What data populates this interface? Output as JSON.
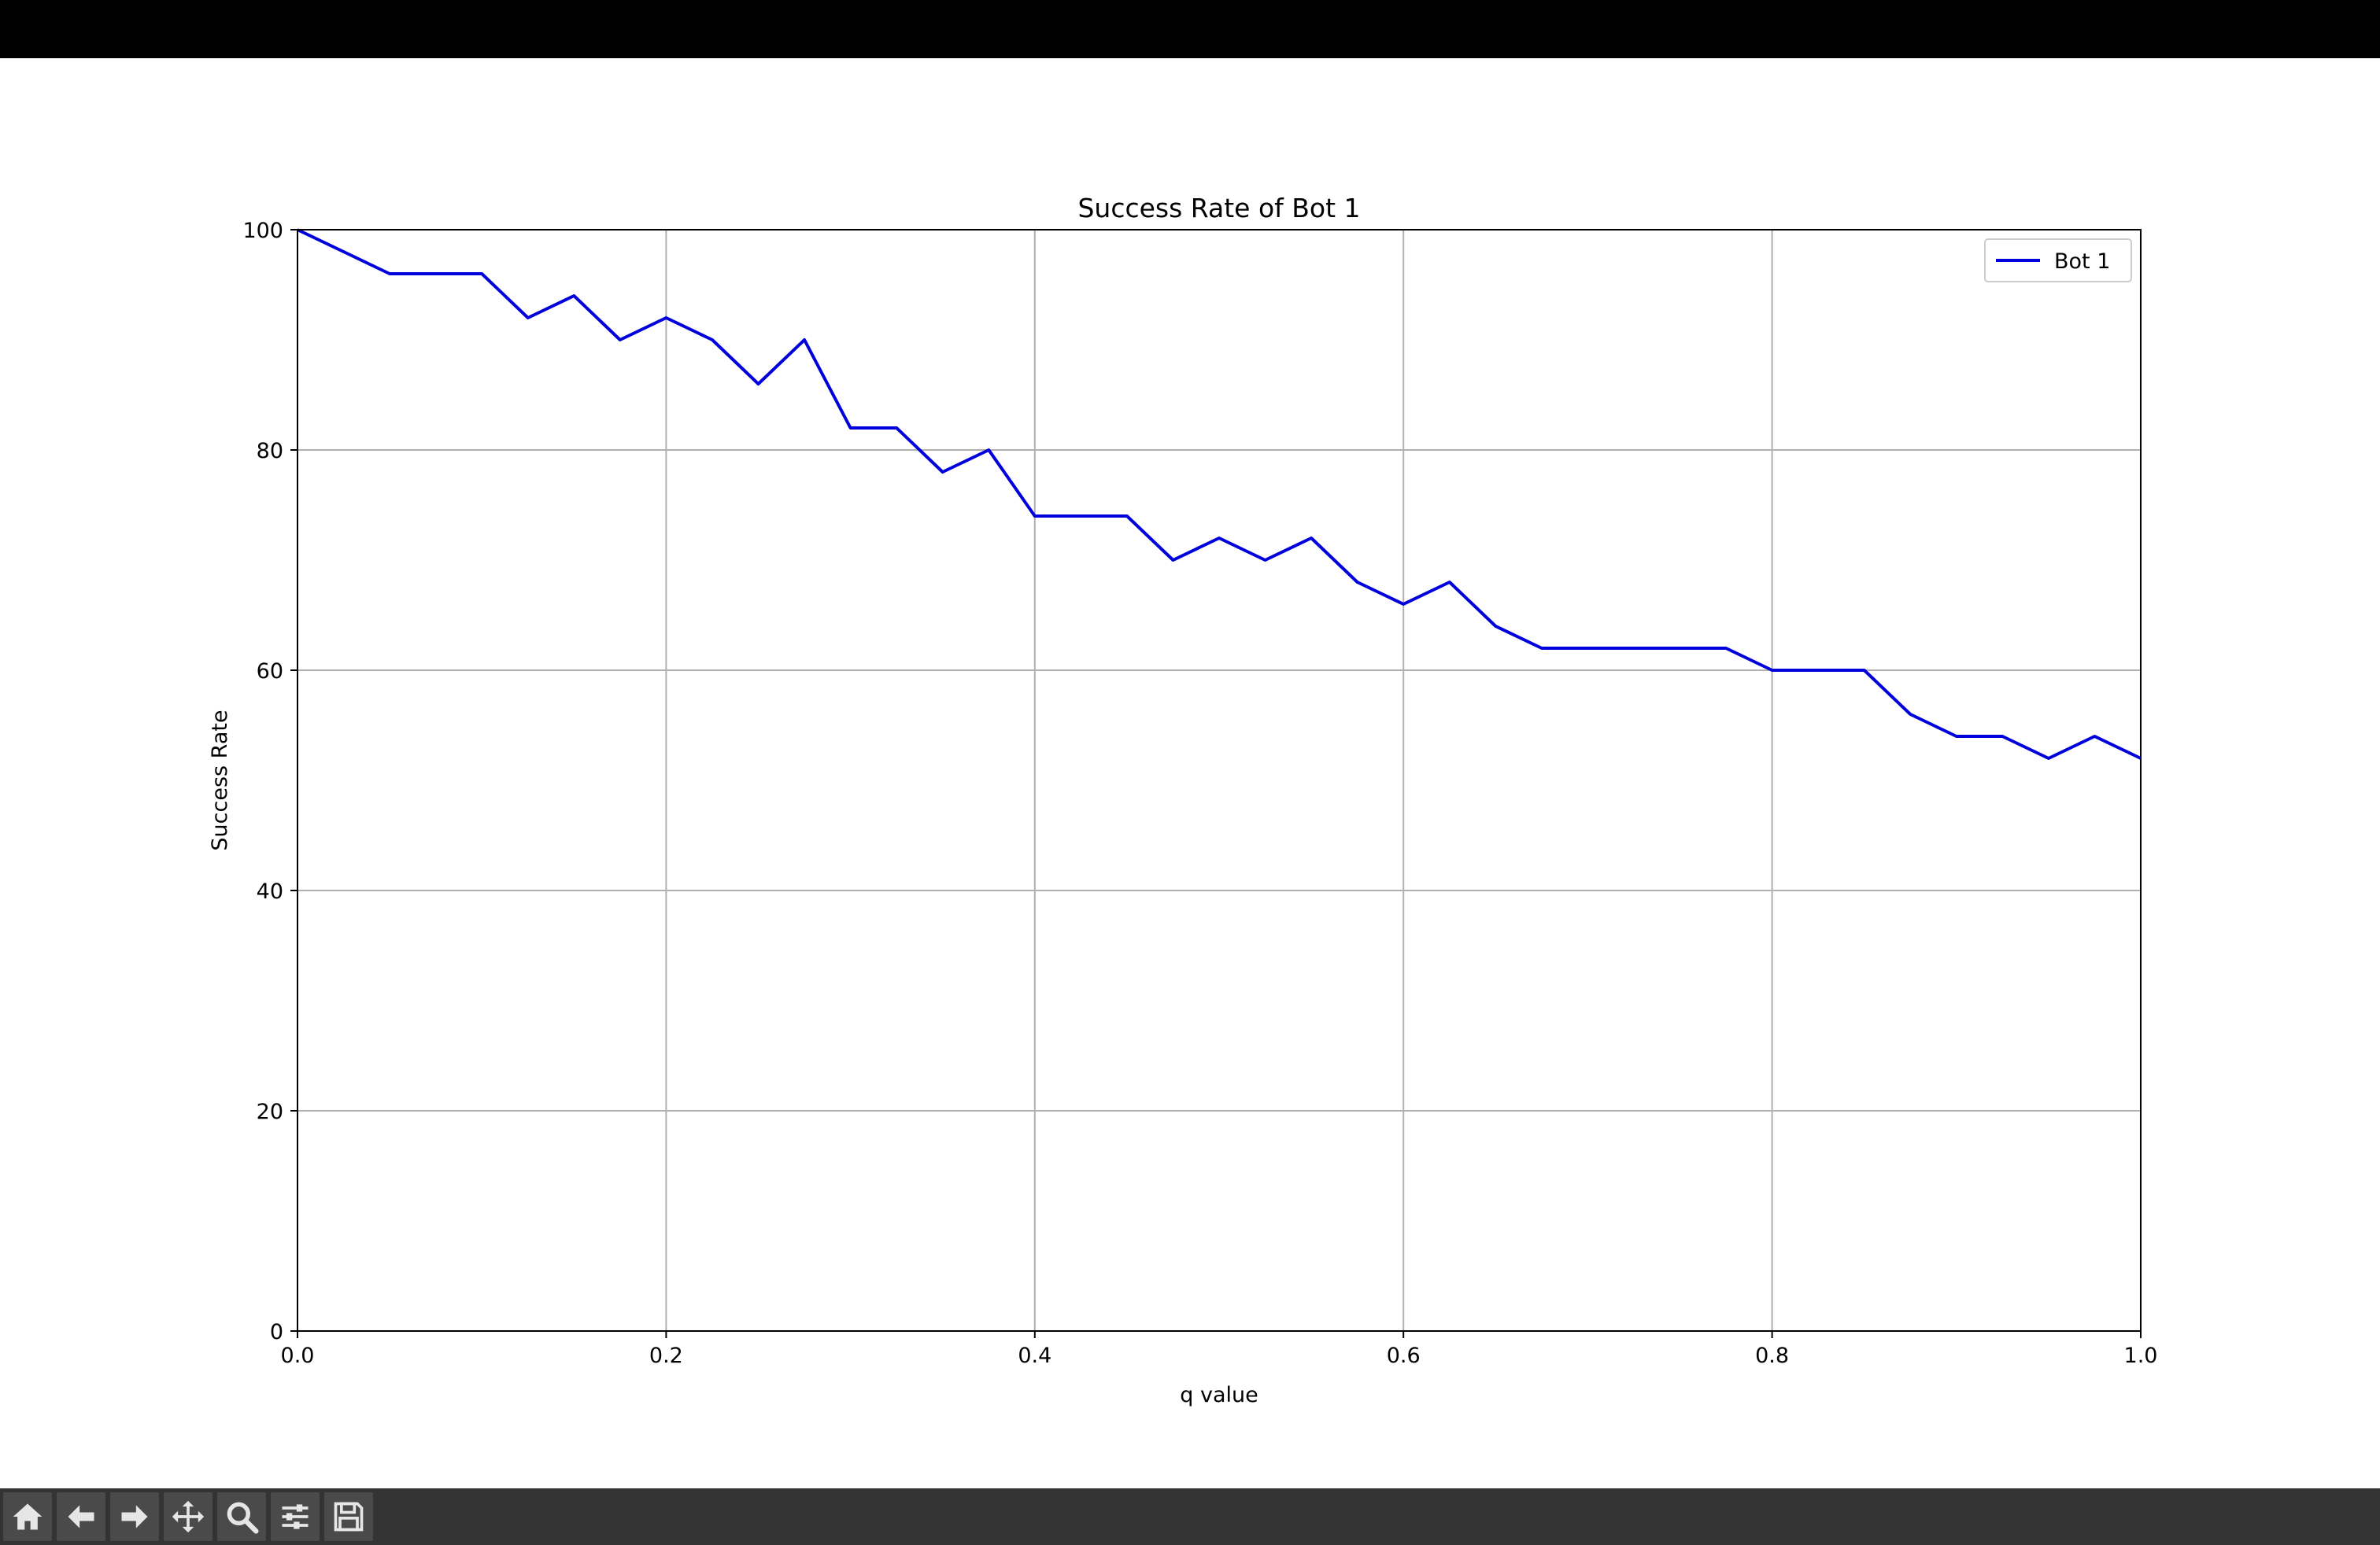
{
  "window": {
    "title_bar_color": "#000000"
  },
  "toolbar": {
    "background": "#333333",
    "buttons": [
      {
        "icon": "home-icon",
        "action": "home"
      },
      {
        "icon": "back-arrow-icon",
        "action": "back"
      },
      {
        "icon": "forward-arrow-icon",
        "action": "forward"
      },
      {
        "icon": "pan-move-icon",
        "action": "pan"
      },
      {
        "icon": "zoom-magnifier-icon",
        "action": "zoom"
      },
      {
        "icon": "configure-sliders-icon",
        "action": "configure-subplots"
      },
      {
        "icon": "save-floppy-icon",
        "action": "save"
      }
    ]
  },
  "chart_data": {
    "type": "line",
    "title": "Success Rate of Bot 1",
    "xlabel": "q value",
    "ylabel": "Success Rate",
    "xlim": [
      0.0,
      1.0
    ],
    "ylim": [
      0,
      100
    ],
    "xticks": [
      "0.0",
      "0.2",
      "0.4",
      "0.6",
      "0.8",
      "1.0"
    ],
    "yticks": [
      "0",
      "20",
      "40",
      "60",
      "80",
      "100"
    ],
    "grid": true,
    "legend": {
      "position": "top-right",
      "entries": [
        "Bot 1"
      ]
    },
    "series": [
      {
        "name": "Bot 1",
        "color": "#0000dd",
        "x": [
          0.0,
          0.025,
          0.05,
          0.075,
          0.1,
          0.125,
          0.15,
          0.175,
          0.2,
          0.225,
          0.25,
          0.275,
          0.3,
          0.325,
          0.35,
          0.375,
          0.4,
          0.425,
          0.45,
          0.475,
          0.5,
          0.525,
          0.55,
          0.575,
          0.6,
          0.625,
          0.65,
          0.675,
          0.7,
          0.725,
          0.75,
          0.775,
          0.8,
          0.825,
          0.85,
          0.875,
          0.9,
          0.925,
          0.95,
          0.975,
          1.0
        ],
        "values": [
          100,
          98,
          96,
          96,
          96,
          92,
          94,
          90,
          92,
          90,
          86,
          90,
          82,
          82,
          78,
          80,
          74,
          74,
          74,
          70,
          72,
          70,
          72,
          68,
          66,
          68,
          64,
          62,
          62,
          62,
          62,
          62,
          60,
          60,
          60,
          56,
          54,
          54,
          52,
          54,
          52
        ]
      }
    ]
  }
}
